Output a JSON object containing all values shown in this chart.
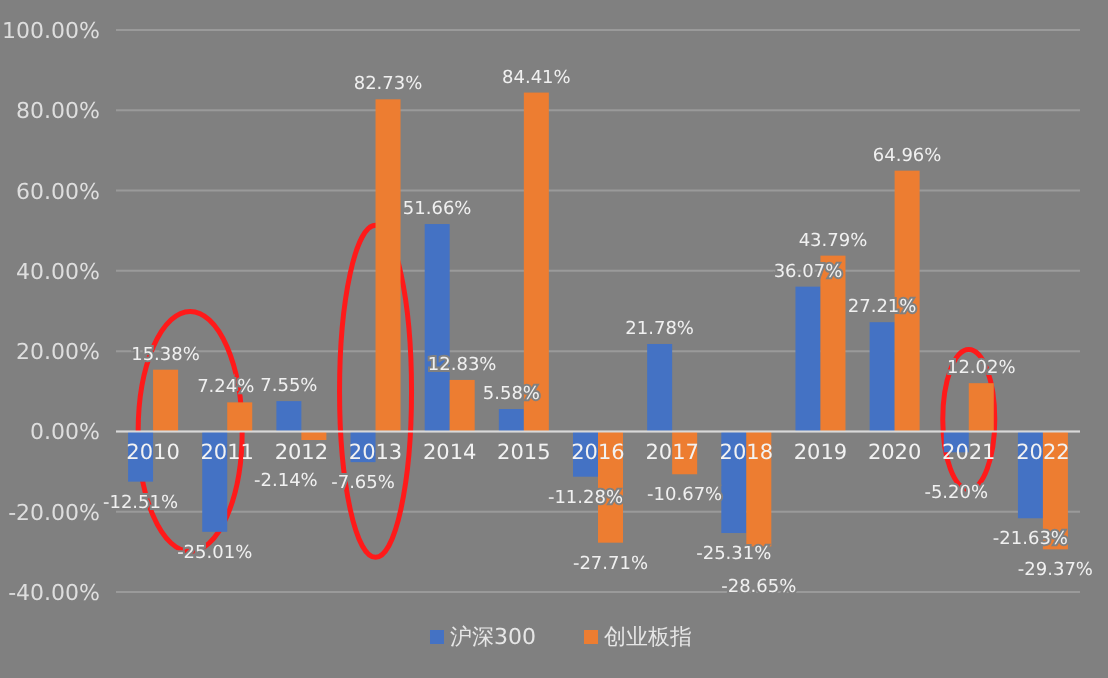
{
  "chart_data": {
    "type": "bar",
    "categories": [
      "2010",
      "2011",
      "2012",
      "2013",
      "2014",
      "2015",
      "2016",
      "2017",
      "2018",
      "2019",
      "2020",
      "2021",
      "2022"
    ],
    "series": [
      {
        "name": "沪深300",
        "color": "#4472c4",
        "values": [
          -12.51,
          -25.01,
          7.55,
          -7.65,
          51.66,
          5.58,
          -11.28,
          21.78,
          -25.31,
          36.07,
          27.21,
          -5.2,
          -21.63
        ],
        "value_labels": [
          "-12.51%",
          "-25.01%",
          "7.55%",
          "-7.65%",
          "51.66%",
          "5.58%",
          "-11.28%",
          "21.78%",
          "-25.31%",
          "36.07%",
          "27.21%",
          "-5.20%",
          "-21.63%"
        ]
      },
      {
        "name": "创业板指",
        "color": "#ed7d31",
        "values": [
          15.38,
          7.24,
          -2.14,
          82.73,
          12.83,
          84.41,
          -27.71,
          -10.67,
          -28.65,
          43.79,
          64.96,
          12.02,
          -29.37
        ],
        "value_labels": [
          "15.38%",
          "7.24%",
          "-2.14%",
          "82.73%",
          "12.83%",
          "84.41%",
          "-27.71%",
          "-10.67%",
          "-28.65%",
          "43.79%",
          "64.96%",
          "12.02%",
          "-29.37%"
        ]
      }
    ],
    "ylim": [
      -40,
      100
    ],
    "yticks": [
      {
        "value": -40,
        "label": "-40.00%"
      },
      {
        "value": -20,
        "label": "-20.00%"
      },
      {
        "value": 0,
        "label": "0.00%"
      },
      {
        "value": 20,
        "label": "20.00%"
      },
      {
        "value": 40,
        "label": "40.00%"
      },
      {
        "value": 60,
        "label": "60.00%"
      },
      {
        "value": 80,
        "label": "80.00%"
      },
      {
        "value": 100,
        "label": "100.00%"
      }
    ],
    "grid": "y",
    "legend": "bottom"
  }
}
